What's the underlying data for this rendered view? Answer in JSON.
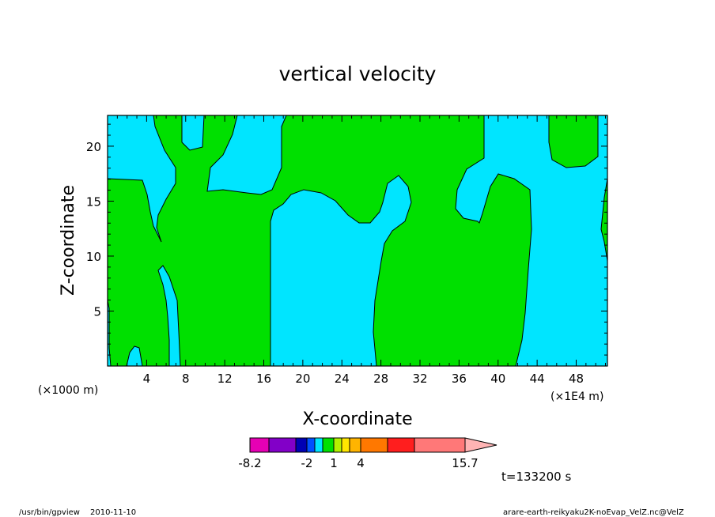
{
  "footer": {
    "program": "/usr/bin/gpview",
    "date": "2010-11-10",
    "source": "arare-earth-reikyaku2K-noEvap_VelZ.nc@VelZ"
  },
  "chart_data": {
    "type": "contour",
    "title": "vertical velocity",
    "xlabel": "X-coordinate",
    "ylabel": "Z-coordinate",
    "x_unit_left": "(×1000 m)",
    "x_unit_right": "(×1E4 m)",
    "xlim": [
      0,
      51.2
    ],
    "ylim": [
      0,
      22.8
    ],
    "x_ticks": [
      "4",
      "8",
      "12",
      "16",
      "20",
      "24",
      "28",
      "32",
      "36",
      "40",
      "44",
      "48"
    ],
    "y_ticks": [
      "5",
      "10",
      "15",
      "20"
    ],
    "time_label": "t=133200 s",
    "background_level_color": "#00e5ff",
    "contour_fill_color": "#00e000",
    "colorbar": {
      "labels": [
        "-8.2",
        "-2",
        "1",
        "4",
        "15.7"
      ],
      "bins": [
        "#e600b4",
        "#8200c8",
        "#0000b4",
        "#0050ff",
        "#00e5ff",
        "#00e000",
        "#b4f000",
        "#ffe600",
        "#ffb400",
        "#ff7800",
        "#ff1e1e",
        "#ff7878"
      ],
      "extend_color": "#ffb4b4"
    }
  }
}
